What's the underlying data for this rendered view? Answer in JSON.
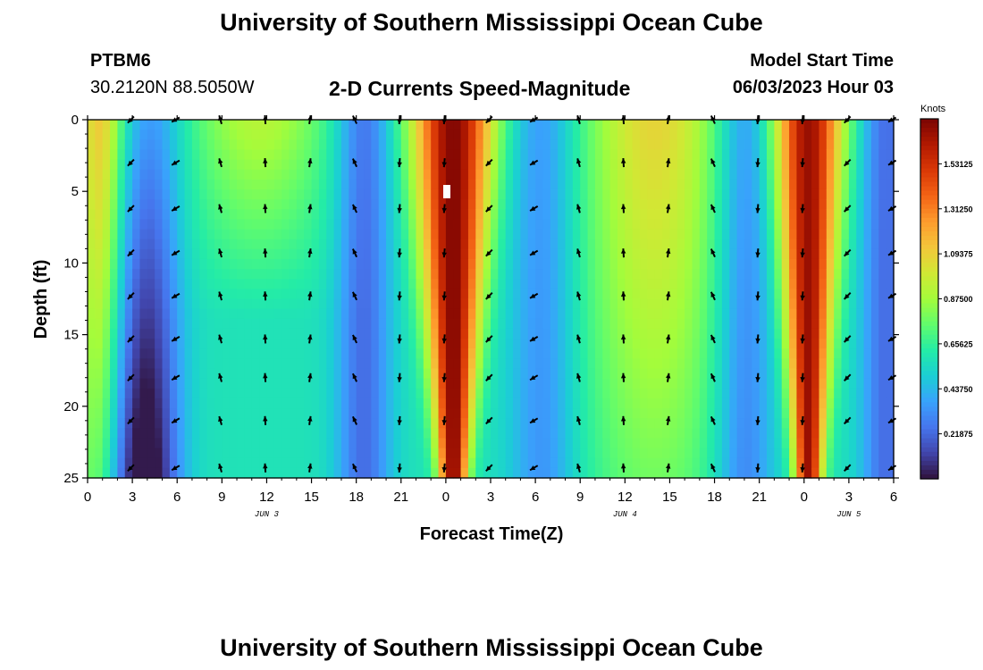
{
  "title": "University of Southern Mississippi Ocean Cube",
  "title_bottom": "University of Southern Mississippi Ocean Cube",
  "station": {
    "id": "PTBM6",
    "coords": "30.2120N  88.5050W"
  },
  "subtitle": "2-D Currents Speed-Magnitude",
  "model_start": {
    "label": "Model Start Time",
    "value": "06/03/2023 Hour 03"
  },
  "chart_data": {
    "type": "heatmap",
    "title": "2-D Currents Speed-Magnitude",
    "xlabel": "Forecast Time(Z)",
    "ylabel": "Depth (ft)",
    "x_ticks": [
      "0",
      "3",
      "6",
      "9",
      "12",
      "15",
      "18",
      "21",
      "0",
      "3",
      "6",
      "9",
      "12",
      "15",
      "18",
      "21",
      "0",
      "3",
      "6"
    ],
    "x_range_hours": [
      0,
      54
    ],
    "date_labels": [
      {
        "text": "JUN 3",
        "hour": 12
      },
      {
        "text": "JUN 4",
        "hour": 36
      },
      {
        "text": "JUN 5",
        "hour": 51
      }
    ],
    "y_ticks": [
      "0",
      "5",
      "10",
      "15",
      "20",
      "25"
    ],
    "ylim": [
      0,
      25
    ],
    "colorbar": {
      "title": "Knots",
      "ticks": [
        "1.53125",
        "1.31250",
        "1.09375",
        "0.87500",
        "0.65625",
        "0.43750",
        "0.21875"
      ],
      "min": 0,
      "max": 1.75
    },
    "arrow_times_hours": [
      2.9,
      5.9,
      8.9,
      11.9,
      14.9,
      17.9,
      20.9,
      23.9,
      26.9,
      29.9,
      32.9,
      35.9,
      38.9,
      41.9,
      44.9,
      47.9,
      50.9,
      53.9
    ],
    "arrow_depths_ft": [
      0,
      3,
      6.2,
      9.3,
      12.3,
      15.3,
      18,
      21,
      24.3
    ],
    "speed_profile_note": "Strong flow (>1.3 kn) near hours 22-27 and 46-50 full depth; moderate 0.8-1.1 kn near hours 33-42 and 8-15 upper layer; weak near hours 2-6 and 17-20"
  },
  "colors": {
    "colormap": [
      "#30123b",
      "#4145ab",
      "#4675ed",
      "#39a2fc",
      "#1bcfd4",
      "#24eca6",
      "#61fc6c",
      "#a4fc3b",
      "#d1e834",
      "#f3c63a",
      "#fe9b2d",
      "#f36315",
      "#d93806",
      "#b11901",
      "#7a0403"
    ]
  }
}
